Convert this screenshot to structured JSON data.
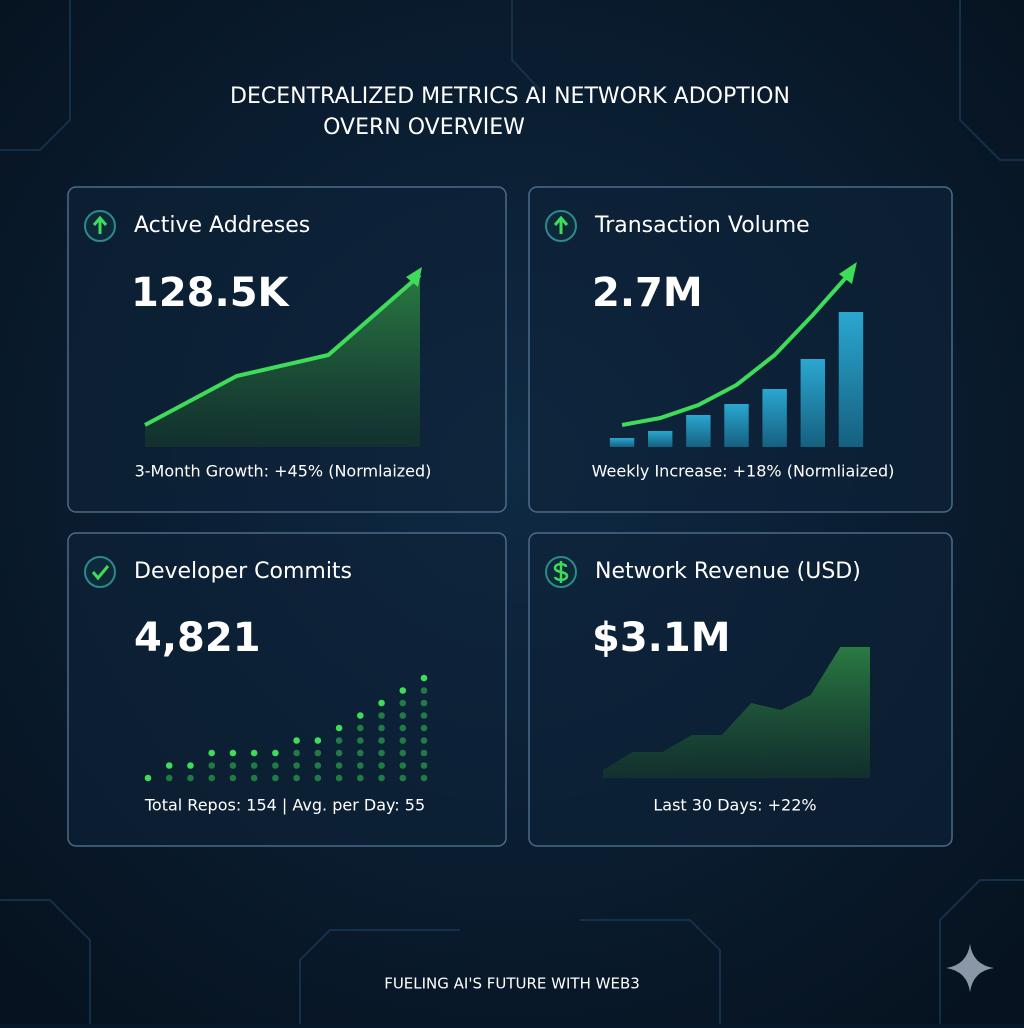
{
  "header": {
    "title": [
      "DECENTRALIZED METRICS AI NETWORK ADOPTION",
      "OVERN OVERVIEW"
    ]
  },
  "cards": [
    {
      "title": "Active Addreses",
      "value": "128.5K",
      "caption": "3-Month Growth: +45% (Normlaized)",
      "chart": {
        "type": "area",
        "values": [
          22,
          71,
          92,
          172
        ],
        "ylim": [
          0,
          180
        ]
      }
    },
    {
      "title": "Transaction Volume",
      "value": "2.7M",
      "caption": "Weekly Increase: +18% (Normliaized)",
      "chart": {
        "type": "bar-trend",
        "values": [
          9,
          16,
          32,
          43,
          58,
          88,
          135
        ],
        "line": [
          22,
          29,
          42,
          62,
          92,
          132,
          175
        ],
        "ylim": [
          0,
          180
        ]
      }
    },
    {
      "title": "Developer Commits",
      "value": "4,821",
      "caption": "Total Repos: 154 | Avg. per Day: 55",
      "chart": {
        "type": "dots",
        "values": [
          1,
          2,
          2,
          3,
          3,
          3,
          3,
          4,
          4,
          5,
          6,
          7,
          8,
          9
        ],
        "ylim": [
          0,
          10
        ]
      }
    },
    {
      "title": "Network Revenue (USD)",
      "value": "$3.1M",
      "caption": "Last 30 Days: +22%",
      "chart": {
        "type": "area",
        "values": [
          8,
          26,
          26,
          43,
          43,
          75,
          68,
          83,
          131,
          131
        ],
        "ylim": [
          0,
          140
        ]
      }
    }
  ],
  "footer": {
    "text": "FUELING AI'S FUTURE WITH WEB3"
  }
}
